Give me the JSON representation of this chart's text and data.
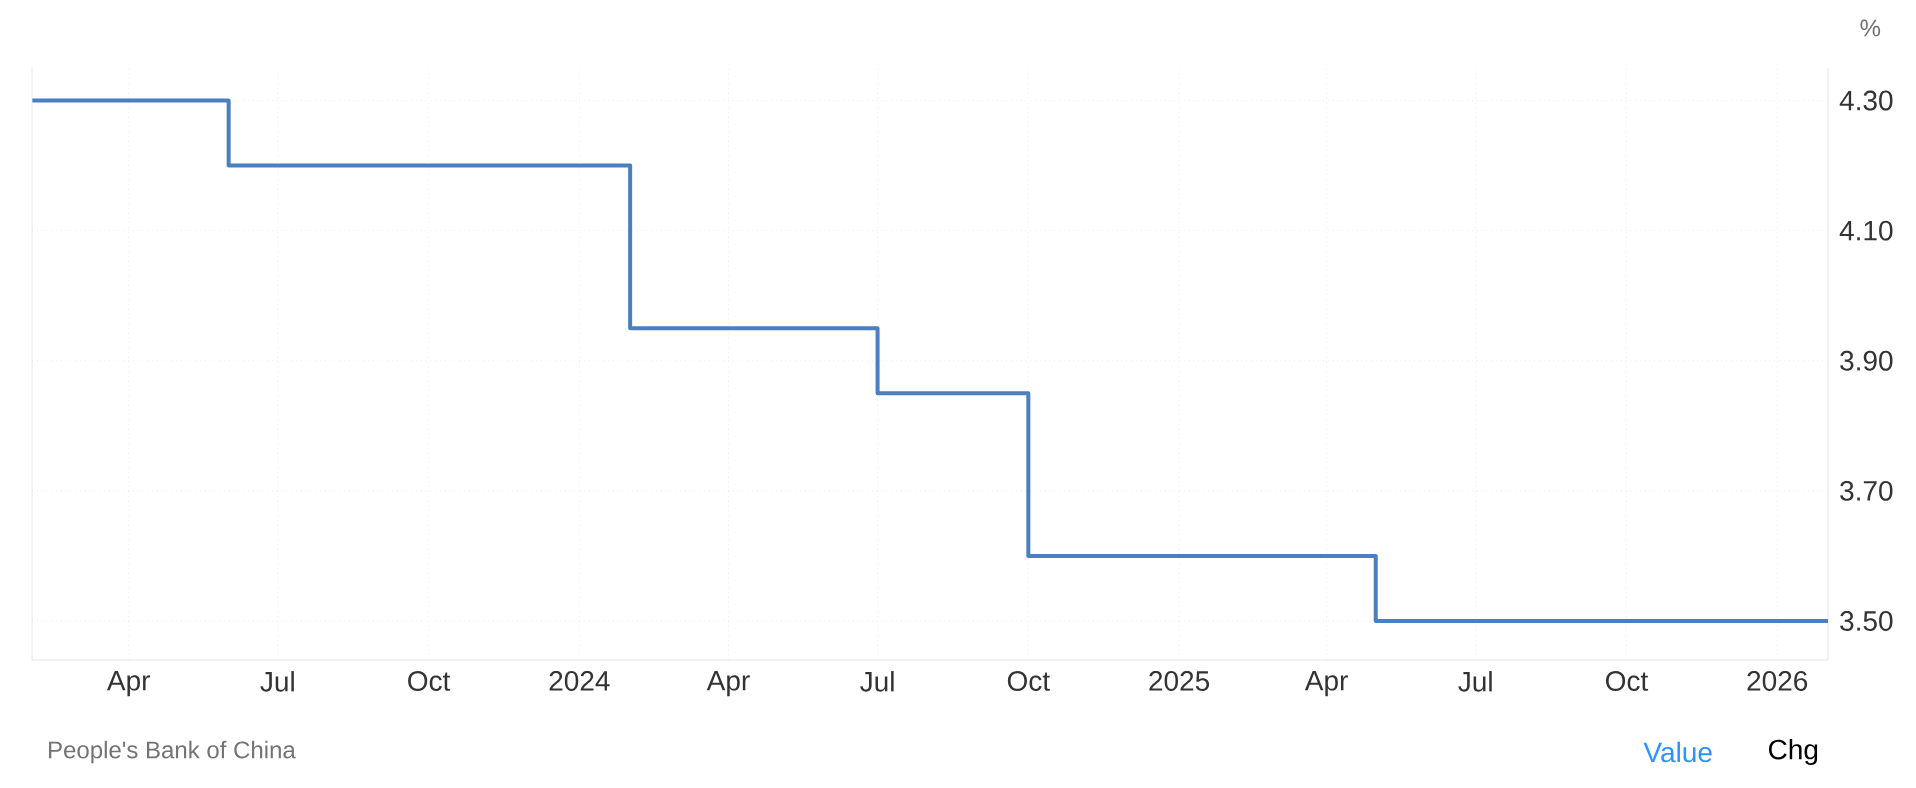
{
  "chart_data": {
    "type": "step",
    "ylabel": "%",
    "x": [
      "2023-02-01",
      "2023-06-01",
      "2024-02-01",
      "2024-07-01",
      "2024-10-01",
      "2025-05-01",
      "2026-02-01"
    ],
    "values": [
      4.3,
      4.2,
      3.95,
      3.85,
      3.6,
      3.5,
      3.5
    ],
    "color": "#4a7fc1",
    "xlim": [
      "2023-02-01",
      "2026-02-01"
    ],
    "xticks": [
      {
        "value": "2023-04-01",
        "label": "Apr"
      },
      {
        "value": "2023-07-01",
        "label": "Jul"
      },
      {
        "value": "2023-10-01",
        "label": "Oct"
      },
      {
        "value": "2024-01-01",
        "label": "2024"
      },
      {
        "value": "2024-04-01",
        "label": "Apr"
      },
      {
        "value": "2024-07-01",
        "label": "Jul"
      },
      {
        "value": "2024-10-01",
        "label": "Oct"
      },
      {
        "value": "2025-01-01",
        "label": "2025"
      },
      {
        "value": "2025-04-01",
        "label": "Apr"
      },
      {
        "value": "2025-07-01",
        "label": "Jul"
      },
      {
        "value": "2025-10-01",
        "label": "Oct"
      },
      {
        "value": "2026-01-01",
        "label": "2026"
      }
    ],
    "ylim": [
      3.44,
      4.35
    ],
    "yticks": [
      {
        "value": 3.5,
        "label": "3.50"
      },
      {
        "value": 3.7,
        "label": "3.70"
      },
      {
        "value": 3.9,
        "label": "3.90"
      },
      {
        "value": 4.1,
        "label": "4.10"
      },
      {
        "value": 4.3,
        "label": "4.30"
      }
    ],
    "grid": true,
    "annotations": [
      "People's Bank of China",
      "Value",
      "Chg"
    ]
  }
}
